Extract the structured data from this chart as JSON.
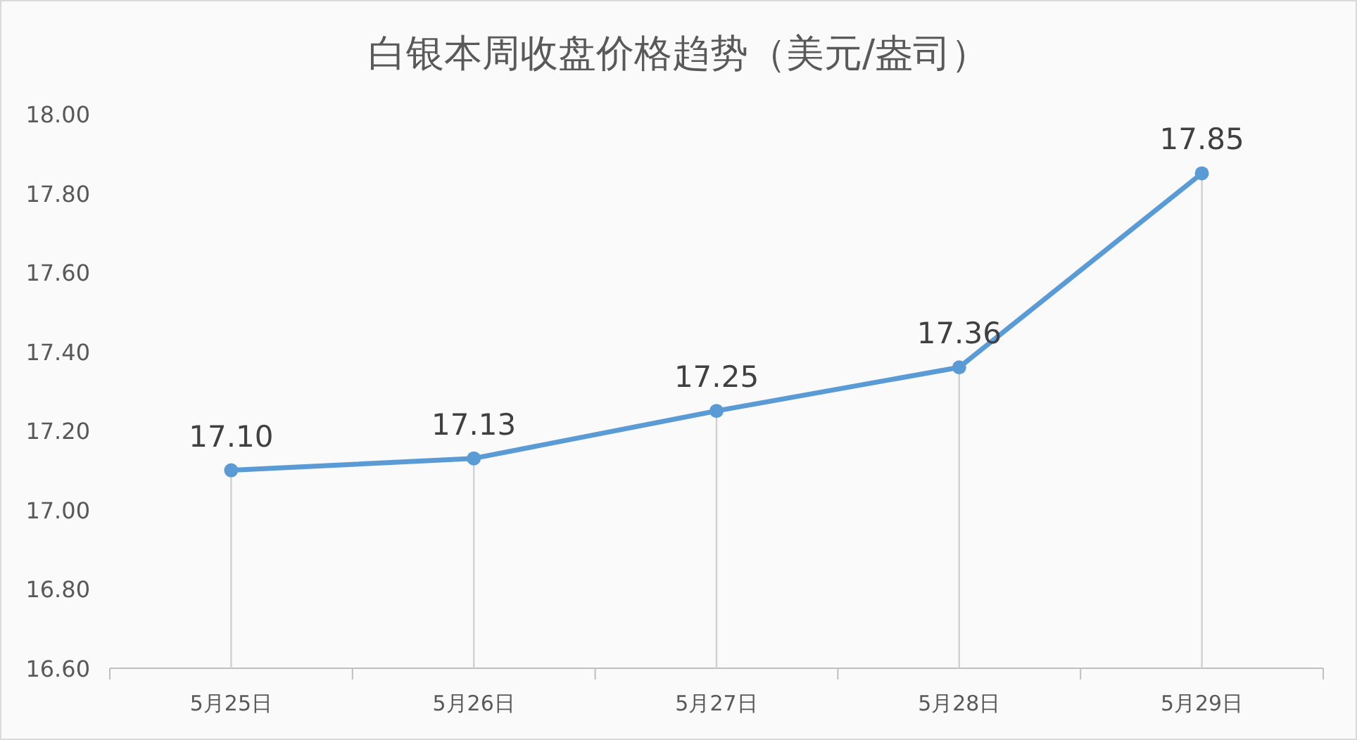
{
  "chart_data": {
    "type": "line",
    "title": "白银本周收盘价格趋势（美元/盎司）",
    "categories": [
      "5月25日",
      "5月26日",
      "5月27日",
      "5月28日",
      "5月29日"
    ],
    "series": [
      {
        "color": "#5b9bd5",
        "values": [
          17.1,
          17.13,
          17.25,
          17.36,
          17.85
        ],
        "value_labels": [
          "17.10",
          "17.13",
          "17.25",
          "17.36",
          "17.85"
        ]
      }
    ],
    "ylim": [
      16.6,
      18.0
    ],
    "yticks": [
      {
        "value": 16.6,
        "label": "16.60"
      },
      {
        "value": 16.8,
        "label": "16.80"
      },
      {
        "value": 17.0,
        "label": "17.00"
      },
      {
        "value": 17.2,
        "label": "17.20"
      },
      {
        "value": 17.4,
        "label": "17.40"
      },
      {
        "value": 17.6,
        "label": "17.60"
      },
      {
        "value": 17.8,
        "label": "17.80"
      },
      {
        "value": 18.0,
        "label": "18.00"
      }
    ],
    "grid": "x",
    "marker": "circle",
    "line_style": "solid"
  }
}
